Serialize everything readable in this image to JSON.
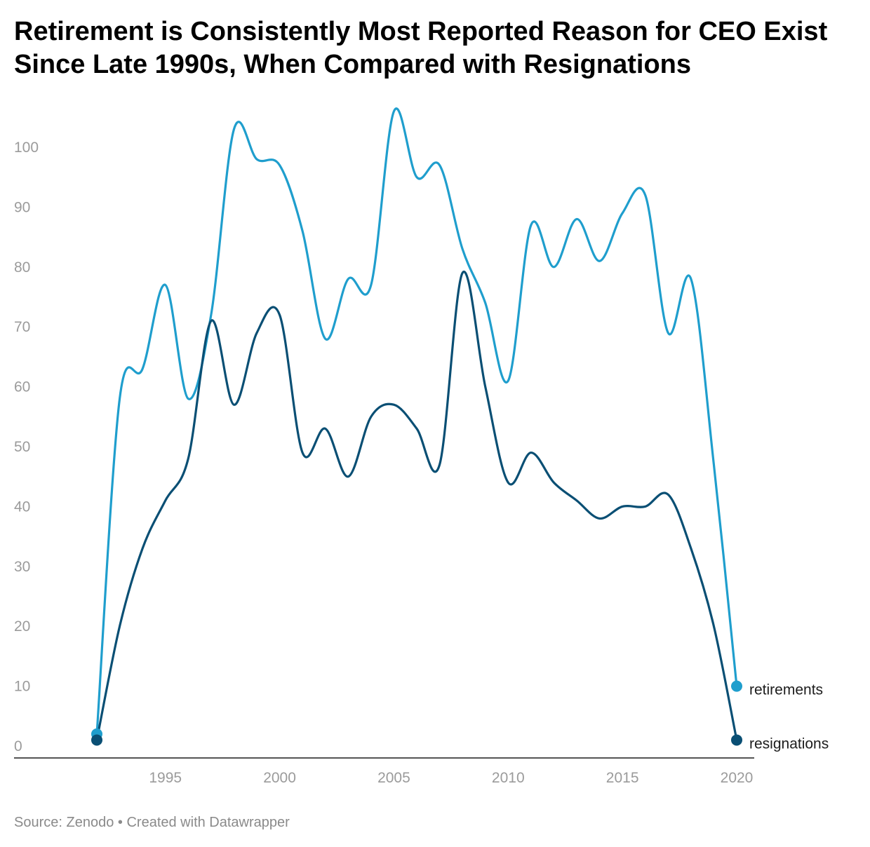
{
  "title": "Retirement is Consistently Most Reported Reason for CEO Exist Since Late 1990s, When Compared with Resignations",
  "footer": {
    "source": "Source: Zenodo",
    "separator": "•",
    "credit": "Created with Datawrapper"
  },
  "chart_data": {
    "type": "line",
    "title": "Retirement is Consistently Most Reported Reason for CEO Exist Since Late 1990s, When Compared with Resignations",
    "xlabel": "",
    "ylabel": "",
    "x": [
      1992,
      1993,
      1994,
      1995,
      1996,
      1997,
      1998,
      1999,
      2000,
      2001,
      2002,
      2003,
      2004,
      2005,
      2006,
      2007,
      2008,
      2009,
      2010,
      2011,
      2012,
      2013,
      2014,
      2015,
      2016,
      2017,
      2018,
      2019,
      2020
    ],
    "xlim": [
      1992,
      2020
    ],
    "ylim": [
      0,
      105
    ],
    "x_ticks": [
      "1995",
      "2000",
      "2005",
      "2010",
      "2015",
      "2020"
    ],
    "y_ticks": [
      "0",
      "10",
      "20",
      "30",
      "40",
      "50",
      "60",
      "70",
      "80",
      "90",
      "100"
    ],
    "grid": false,
    "legend": "direct labels at line ends",
    "series": [
      {
        "name": "retirements",
        "color": "#1f9ecd",
        "values": [
          2,
          58,
          63,
          77,
          58,
          72,
          103,
          98,
          97,
          86,
          68,
          78,
          77,
          106,
          95,
          97,
          83,
          74,
          61,
          87,
          80,
          88,
          81,
          89,
          92,
          69,
          78,
          47,
          10
        ]
      },
      {
        "name": "resignations",
        "color": "#0a4f74",
        "values": [
          1,
          20,
          33,
          41,
          48,
          71,
          57,
          69,
          72,
          49,
          53,
          45,
          55,
          57,
          53,
          47,
          79,
          60,
          44,
          49,
          44,
          41,
          38,
          40,
          40,
          42,
          33,
          20,
          1
        ]
      }
    ]
  }
}
